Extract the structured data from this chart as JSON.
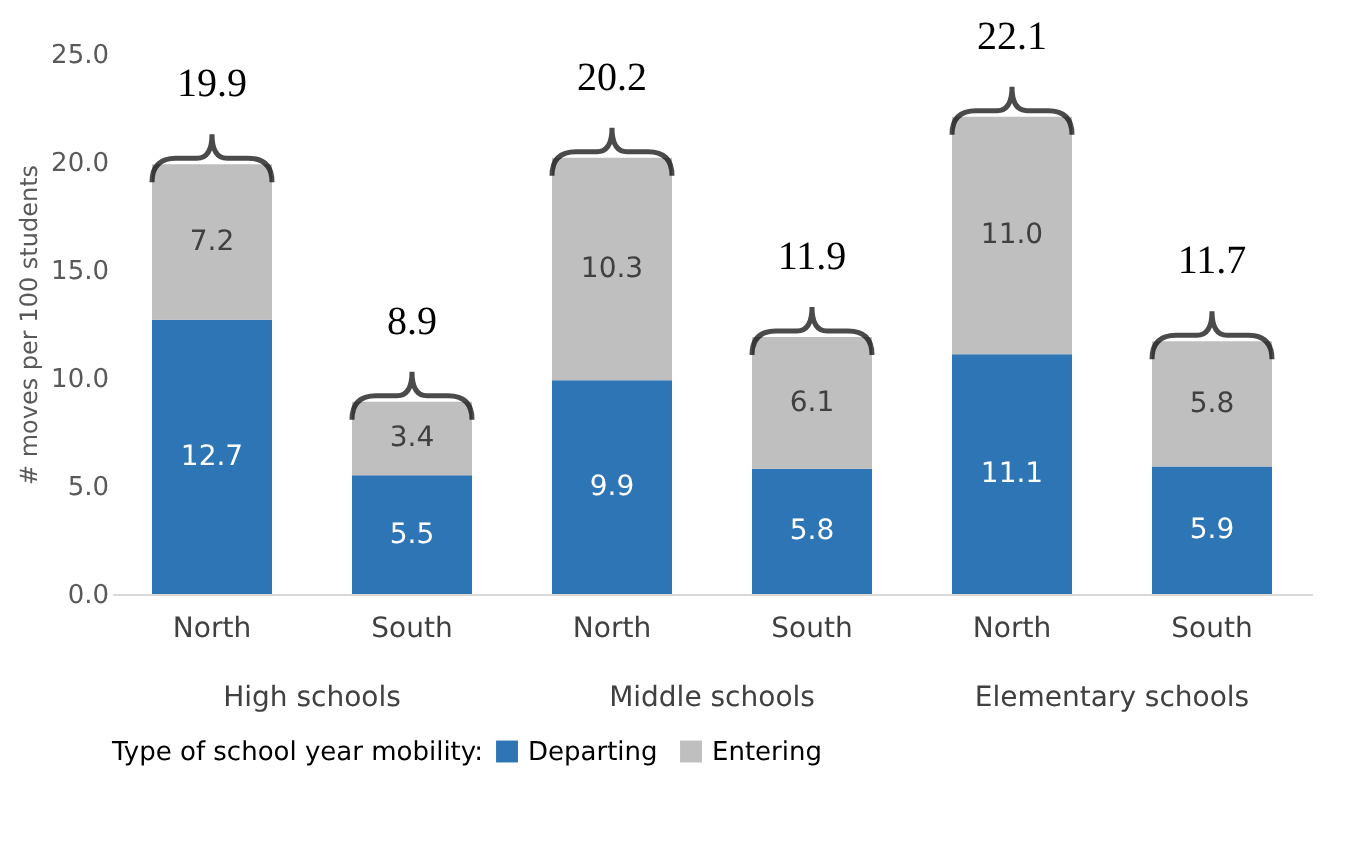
{
  "chart_data": {
    "type": "bar",
    "stacked": true,
    "ylabel": "# moves per 100 students",
    "legend_title": "Type of school year mobility:",
    "legend": "bottom",
    "categories": [
      "North",
      "South",
      "North",
      "South",
      "North",
      "South"
    ],
    "series": [
      {
        "name": "Departing",
        "color": "#2e75b6",
        "values": [
          12.7,
          5.5,
          9.9,
          5.8,
          11.1,
          5.9
        ],
        "value_labels": [
          "12.7",
          "5.5",
          "9.9",
          "5.8",
          "11.1",
          "5.9"
        ]
      },
      {
        "name": "Entering",
        "color": "#bfbfbf",
        "values": [
          7.2,
          3.4,
          10.3,
          6.1,
          11.0,
          5.8
        ],
        "value_labels": [
          "7.2",
          "3.4",
          "10.3",
          "6.1",
          "11.0",
          "5.8"
        ]
      }
    ],
    "totals": [
      "19.9",
      "8.9",
      "20.2",
      "11.9",
      "22.1",
      "11.7"
    ],
    "annotations": [
      "High schools",
      "Middle schools",
      "Elementary schools"
    ],
    "ylim": [
      0,
      25
    ],
    "yticks": [
      {
        "value": 0,
        "label": "0.0"
      },
      {
        "value": 5,
        "label": "5.0"
      },
      {
        "value": 10,
        "label": "10.0"
      },
      {
        "value": 15,
        "label": "15.0"
      },
      {
        "value": 20,
        "label": "20.0"
      },
      {
        "value": 25,
        "label": "25.0"
      }
    ],
    "grid": false
  }
}
